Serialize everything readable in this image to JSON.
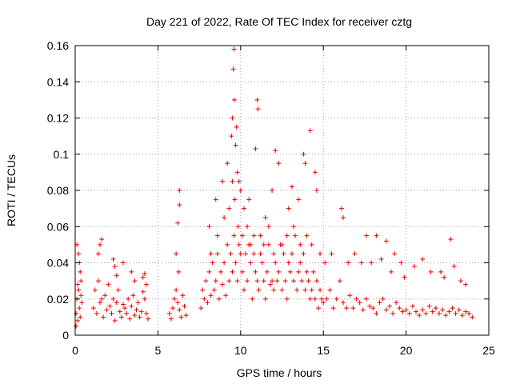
{
  "chart_data": {
    "type": "scatter",
    "title": "Day 221 of 2022, Rate Of TEC Index for receiver cztg",
    "xlabel": "GPS time / hours",
    "ylabel": "ROTI / TECUs",
    "xlim": [
      0,
      25
    ],
    "ylim": [
      0,
      0.16
    ],
    "xticks": [
      0,
      5,
      10,
      15,
      20,
      25
    ],
    "xtick_labels": [
      "0",
      "5",
      "10",
      "15",
      "20",
      "25"
    ],
    "yticks": [
      0,
      0.02,
      0.04,
      0.06,
      0.08,
      0.1,
      0.12,
      0.14,
      0.16
    ],
    "ytick_labels": [
      "0",
      "0.02",
      "0.04",
      "0.06",
      "0.08",
      "0.1",
      "0.12",
      "0.14",
      "0.16"
    ],
    "grid": true,
    "marker": "+",
    "color": "#ee0000",
    "series": [
      {
        "x": [
          0.05,
          0.1,
          0.15,
          0.2,
          0.25,
          0.3,
          0.35,
          0.4,
          0.1,
          0.2,
          0.3,
          0.05,
          0.15,
          0.25,
          0.35,
          1.1,
          1.2,
          1.3,
          1.4,
          1.5,
          1.6,
          1.7,
          1.8,
          1.9,
          2.0,
          2.1,
          2.2,
          2.3,
          2.4,
          2.5,
          2.6,
          2.7,
          2.8,
          2.9,
          3.0,
          3.1,
          3.2,
          3.3,
          3.4,
          3.5,
          3.6,
          3.7,
          3.8,
          3.9,
          4.0,
          4.1,
          4.2,
          4.3,
          4.4,
          1.4,
          1.5,
          1.6,
          2.3,
          2.4,
          2.5,
          2.9,
          3.4,
          3.6,
          4.1,
          4.2,
          4.3,
          5.7,
          5.8,
          5.9,
          6.0,
          6.1,
          6.2,
          6.3,
          6.4,
          6.5,
          6.6,
          6.7,
          6.2,
          6.3,
          6.1,
          6.25,
          6.3,
          7.6,
          7.7,
          7.8,
          7.9,
          8.0,
          8.1,
          8.2,
          8.3,
          8.4,
          8.5,
          8.6,
          8.7,
          8.8,
          8.9,
          9.0,
          9.1,
          9.2,
          9.3,
          9.4,
          9.5,
          9.6,
          9.7,
          9.8,
          9.9,
          10.0,
          10.1,
          10.2,
          10.3,
          10.4,
          10.5,
          10.6,
          10.7,
          10.8,
          10.9,
          11.0,
          11.1,
          11.2,
          11.3,
          11.4,
          11.5,
          11.6,
          11.7,
          11.8,
          11.9,
          12.0,
          12.1,
          12.2,
          12.3,
          12.4,
          12.5,
          12.6,
          12.7,
          12.8,
          12.9,
          13.0,
          13.1,
          13.2,
          13.3,
          13.4,
          13.5,
          13.6,
          13.7,
          13.8,
          13.9,
          14.0,
          14.1,
          14.2,
          14.3,
          14.4,
          14.5,
          14.6,
          14.7,
          14.8,
          14.9,
          15.0,
          15.2,
          15.4,
          15.6,
          15.8,
          16.0,
          16.2,
          16.4,
          16.6,
          16.8,
          17.0,
          17.2,
          17.4,
          17.6,
          17.8,
          18.0,
          18.2,
          18.4,
          18.6,
          18.8,
          19.0,
          19.2,
          19.4,
          19.6,
          19.8,
          20.0,
          20.2,
          20.4,
          20.6,
          20.8,
          21.0,
          21.2,
          21.4,
          21.6,
          21.8,
          22.0,
          22.2,
          22.4,
          22.6,
          22.8,
          23.0,
          23.2,
          23.4,
          23.6,
          23.8,
          24.0,
          8.1,
          8.5,
          8.9,
          9.2,
          9.45,
          9.5,
          9.55,
          9.6,
          9.62,
          9.7,
          9.75,
          9.8,
          9.9,
          10.0,
          10.2,
          10.5,
          10.9,
          11.0,
          11.05,
          11.5,
          11.9,
          12.1,
          12.3,
          12.9,
          13.1,
          13.5,
          13.8,
          13.9,
          14.2,
          14.5,
          14.6,
          16.1,
          16.2,
          17.6,
          18.2,
          18.8,
          19.3,
          19.7,
          21.0,
          22.1,
          22.7,
          22.9,
          8.2,
          8.6,
          9.0,
          9.3,
          9.5,
          9.65,
          9.85,
          10.1,
          10.4,
          10.6,
          10.8,
          11.2,
          11.4,
          11.7,
          12.0,
          12.5,
          12.8,
          13.2,
          13.6,
          14.0,
          14.3,
          14.8,
          15.1,
          15.5,
          16.5,
          16.9,
          17.3,
          17.9,
          18.5,
          19.1,
          19.9,
          20.5,
          21.5,
          22.3,
          23.3,
          23.6
        ],
        "y": [
          0.012,
          0.02,
          0.008,
          0.025,
          0.015,
          0.01,
          0.03,
          0.018,
          0.05,
          0.045,
          0.035,
          0.005,
          0.028,
          0.04,
          0.022,
          0.015,
          0.025,
          0.012,
          0.03,
          0.018,
          0.02,
          0.01,
          0.022,
          0.014,
          0.028,
          0.016,
          0.012,
          0.02,
          0.008,
          0.018,
          0.025,
          0.013,
          0.01,
          0.017,
          0.015,
          0.012,
          0.02,
          0.009,
          0.016,
          0.022,
          0.011,
          0.014,
          0.018,
          0.01,
          0.013,
          0.024,
          0.02,
          0.012,
          0.009,
          0.045,
          0.05,
          0.053,
          0.042,
          0.038,
          0.033,
          0.04,
          0.035,
          0.03,
          0.032,
          0.034,
          0.028,
          0.012,
          0.009,
          0.015,
          0.02,
          0.025,
          0.018,
          0.014,
          0.01,
          0.022,
          0.016,
          0.011,
          0.062,
          0.072,
          0.045,
          0.035,
          0.08,
          0.015,
          0.025,
          0.02,
          0.03,
          0.018,
          0.035,
          0.022,
          0.04,
          0.025,
          0.03,
          0.045,
          0.02,
          0.035,
          0.028,
          0.04,
          0.022,
          0.05,
          0.03,
          0.045,
          0.035,
          0.055,
          0.04,
          0.03,
          0.05,
          0.045,
          0.035,
          0.025,
          0.045,
          0.03,
          0.05,
          0.04,
          0.02,
          0.055,
          0.035,
          0.03,
          0.025,
          0.045,
          0.04,
          0.03,
          0.02,
          0.035,
          0.05,
          0.028,
          0.03,
          0.025,
          0.04,
          0.03,
          0.035,
          0.05,
          0.025,
          0.045,
          0.03,
          0.02,
          0.04,
          0.035,
          0.045,
          0.03,
          0.055,
          0.025,
          0.035,
          0.04,
          0.03,
          0.045,
          0.025,
          0.035,
          0.03,
          0.02,
          0.025,
          0.035,
          0.02,
          0.03,
          0.015,
          0.025,
          0.02,
          0.018,
          0.02,
          0.025,
          0.015,
          0.02,
          0.03,
          0.018,
          0.015,
          0.022,
          0.015,
          0.02,
          0.018,
          0.014,
          0.02,
          0.016,
          0.015,
          0.012,
          0.018,
          0.02,
          0.014,
          0.016,
          0.012,
          0.018,
          0.015,
          0.013,
          0.014,
          0.012,
          0.016,
          0.013,
          0.011,
          0.014,
          0.012,
          0.016,
          0.013,
          0.015,
          0.012,
          0.014,
          0.011,
          0.013,
          0.015,
          0.012,
          0.014,
          0.011,
          0.013,
          0.012,
          0.01,
          0.06,
          0.075,
          0.085,
          0.095,
          0.11,
          0.12,
          0.147,
          0.158,
          0.13,
          0.105,
          0.115,
          0.09,
          0.085,
          0.08,
          0.07,
          0.075,
          0.103,
          0.13,
          0.125,
          0.065,
          0.08,
          0.102,
          0.095,
          0.07,
          0.082,
          0.075,
          0.1,
          0.095,
          0.113,
          0.09,
          0.08,
          0.07,
          0.065,
          0.055,
          0.055,
          0.052,
          0.045,
          0.04,
          0.042,
          0.035,
          0.053,
          0.038,
          0.045,
          0.055,
          0.065,
          0.07,
          0.085,
          0.075,
          0.06,
          0.055,
          0.06,
          0.05,
          0.045,
          0.055,
          0.05,
          0.06,
          0.045,
          0.05,
          0.055,
          0.06,
          0.05,
          0.055,
          0.05,
          0.045,
          0.04,
          0.045,
          0.04,
          0.045,
          0.04,
          0.04,
          0.042,
          0.035,
          0.032,
          0.038,
          0.035,
          0.032,
          0.03,
          0.028
        ]
      }
    ]
  }
}
